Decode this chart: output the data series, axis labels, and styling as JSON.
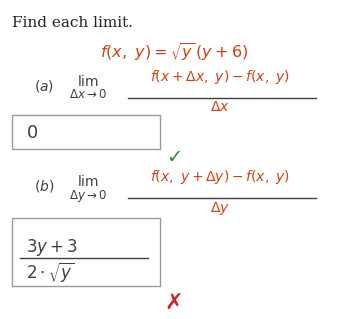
{
  "title": "Find each limit.",
  "bg_color": "#ffffff",
  "text_color": "#d04010",
  "label_color": "#404040",
  "check_color": "#2e8b2e",
  "cross_color": "#cc2222",
  "box_color": "#999999",
  "title_color": "#222222",
  "title_fs": 11,
  "func_fs": 11.5,
  "lim_fs": 10,
  "sub_fs": 8.5,
  "expr_fs": 10,
  "ans_fs": 13,
  "mark_fs": 14
}
